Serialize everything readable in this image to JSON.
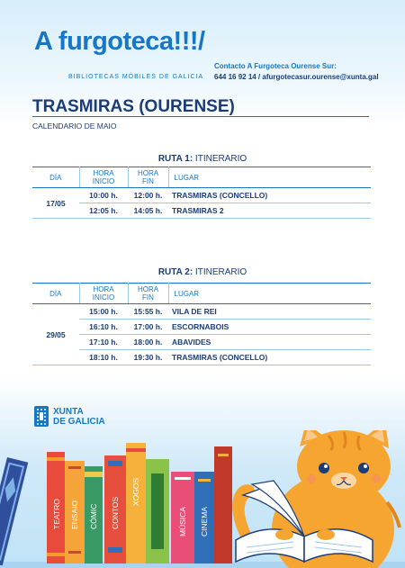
{
  "header": {
    "logo_text": "A furgoteca!!!/",
    "logo_subtitle": "BIBLIOTECAS MÓBILES DE GALICIA",
    "contact_title": "Contacto A Furgoteca Ourense Sur:",
    "contact_line": "644 16 92 14 / afurgotecasur.ourense@xunta.gal"
  },
  "place": "TRASMIRAS (OURENSE)",
  "calendar": "CALENDARIO DE MAIO",
  "table_headers": {
    "day": "DÍA",
    "start_1": "HORA",
    "start_2": "INICIO",
    "end_1": "HORA",
    "end_2": "FIN",
    "place": "LUGAR"
  },
  "routes": [
    {
      "title_bold": "RUTA 1:",
      "title_rest": " ITINERARIO",
      "day": "17/05",
      "rows": [
        {
          "start": "10:00 h.",
          "end": "12:00 h.",
          "place": "TRASMIRAS (CONCELLO)"
        },
        {
          "start": "12:05 h.",
          "end": "14:05 h.",
          "place": "TRASMIRAS 2"
        }
      ]
    },
    {
      "title_bold": "RUTA 2:",
      "title_rest": " ITINERARIO",
      "day": "29/05",
      "rows": [
        {
          "start": "15:00 h.",
          "end": "15:55 h.",
          "place": "VILA DE REI"
        },
        {
          "start": "16:10 h.",
          "end": "17:00 h.",
          "place": "ESCORNABOIS"
        },
        {
          "start": "17:10 h.",
          "end": "18:00 h.",
          "place": "ABAVIDES"
        },
        {
          "start": "18:10 h.",
          "end": "19:30 h.",
          "place": "TRASMIRAS (CONCELLO)"
        }
      ]
    }
  ],
  "footer": {
    "xunta_line1": "XUNTA",
    "xunta_line2": "DE GALICIA",
    "books": [
      "TEATRO",
      "ENSAIO",
      "CÓMIC",
      "CONTOS",
      "XOGOS",
      "MÚSICA",
      "CINEMA"
    ]
  },
  "colors": {
    "brand_blue": "#1677c8",
    "navy": "#1a3d7a",
    "cat_orange": "#f7a531"
  }
}
